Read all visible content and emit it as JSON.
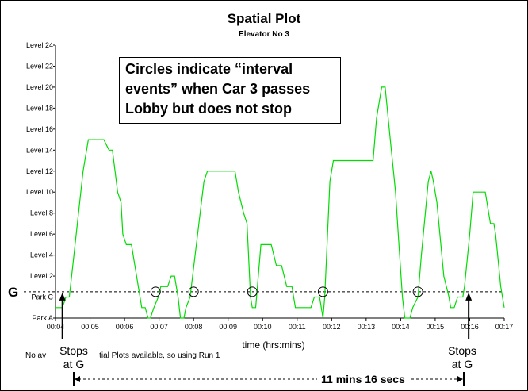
{
  "chart_data": {
    "type": "line",
    "title": "Spatial Plot",
    "subtitle": "Elevator No 3",
    "xlabel": "time (hrs:mins)",
    "x_ticks": [
      "00:04",
      "00:05",
      "00:06",
      "00:07",
      "00:08",
      "00:09",
      "00:10",
      "00:11",
      "00:12",
      "00:13",
      "00:14",
      "00:15",
      "00:16",
      "00:17"
    ],
    "y_ticks": [
      "Park A",
      "Park C",
      "Level 2",
      "Level 4",
      "Level 6",
      "Level 8",
      "Level 10",
      "Level 12",
      "Level 14",
      "Level 16",
      "Level 18",
      "Level 20",
      "Level 22",
      "Level 24"
    ],
    "ground_level_label": "G",
    "line_color": "#00dd00",
    "series": [
      {
        "points": [
          [
            4.0,
            1
          ],
          [
            4.2,
            1
          ],
          [
            4.3,
            2
          ],
          [
            4.4,
            2
          ],
          [
            4.5,
            5
          ],
          [
            4.8,
            14
          ],
          [
            4.95,
            17
          ],
          [
            5.4,
            17
          ],
          [
            5.55,
            16
          ],
          [
            5.65,
            16
          ],
          [
            5.8,
            12
          ],
          [
            5.9,
            11
          ],
          [
            5.95,
            8
          ],
          [
            6.05,
            7
          ],
          [
            6.2,
            7
          ],
          [
            6.3,
            5
          ],
          [
            6.5,
            1
          ],
          [
            6.6,
            1
          ],
          [
            6.68,
            0
          ],
          [
            6.75,
            0
          ],
          [
            6.85,
            1
          ],
          [
            6.98,
            2
          ],
          [
            7.05,
            3
          ],
          [
            7.25,
            3
          ],
          [
            7.35,
            4
          ],
          [
            7.45,
            4
          ],
          [
            7.55,
            2
          ],
          [
            7.62,
            0
          ],
          [
            7.72,
            0
          ],
          [
            7.78,
            1
          ],
          [
            7.9,
            2
          ],
          [
            8.3,
            13
          ],
          [
            8.4,
            14
          ],
          [
            9.2,
            14
          ],
          [
            9.3,
            12
          ],
          [
            9.45,
            10
          ],
          [
            9.55,
            9
          ],
          [
            9.65,
            2
          ],
          [
            9.7,
            1
          ],
          [
            9.8,
            1
          ],
          [
            9.95,
            7
          ],
          [
            10.1,
            7
          ],
          [
            10.25,
            7
          ],
          [
            10.4,
            5
          ],
          [
            10.55,
            5
          ],
          [
            10.7,
            3
          ],
          [
            10.85,
            3
          ],
          [
            10.95,
            1
          ],
          [
            11.4,
            1
          ],
          [
            11.5,
            2
          ],
          [
            11.65,
            2
          ],
          [
            11.75,
            0
          ],
          [
            11.8,
            2
          ],
          [
            11.95,
            13
          ],
          [
            12.05,
            15
          ],
          [
            13.2,
            15
          ],
          [
            13.3,
            19
          ],
          [
            13.45,
            22
          ],
          [
            13.55,
            22
          ],
          [
            13.7,
            17
          ],
          [
            13.85,
            12
          ],
          [
            13.95,
            7
          ],
          [
            14.05,
            2
          ],
          [
            14.12,
            0
          ],
          [
            14.27,
            0
          ],
          [
            14.35,
            1
          ],
          [
            14.5,
            2
          ],
          [
            14.6,
            6
          ],
          [
            14.8,
            13
          ],
          [
            14.88,
            14
          ],
          [
            14.95,
            13
          ],
          [
            15.05,
            11
          ],
          [
            15.25,
            4
          ],
          [
            15.4,
            2
          ],
          [
            15.45,
            1
          ],
          [
            15.55,
            1
          ],
          [
            15.65,
            2
          ],
          [
            15.8,
            2
          ],
          [
            15.85,
            3
          ],
          [
            16.0,
            8
          ],
          [
            16.1,
            12
          ],
          [
            16.45,
            12
          ],
          [
            16.55,
            10
          ],
          [
            16.6,
            9
          ],
          [
            16.7,
            9
          ],
          [
            16.75,
            8
          ],
          [
            16.9,
            3
          ],
          [
            17.0,
            1
          ]
        ]
      }
    ],
    "ylim": [
      0,
      26
    ],
    "xlim": [
      4,
      17
    ],
    "ground_y": 2.5,
    "interval_events_x": [
      6.9,
      8.0,
      9.7,
      11.75,
      14.5
    ]
  },
  "note": {
    "lines": [
      "Circles indicate “interval",
      "events” when Car 3 passes",
      "Lobby but does not stop"
    ]
  },
  "footnote": {
    "part1": "No av",
    "part2": "tial Plots available, so using Run 1"
  },
  "annotations": {
    "stops_left": {
      "line1": "Stops",
      "line2": "at G"
    },
    "stops_right": {
      "line1": "Stops",
      "line2": "at G"
    },
    "duration": "11 mins 16 secs"
  }
}
